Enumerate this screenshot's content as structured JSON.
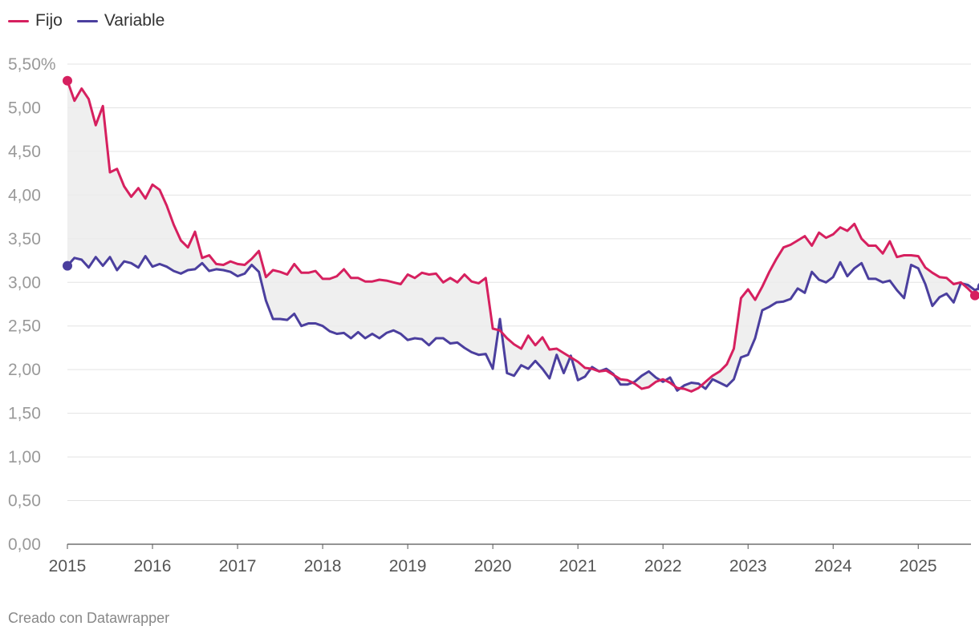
{
  "chart_data": {
    "type": "line",
    "title": "",
    "xlabel": "",
    "ylabel": "",
    "ylim": [
      0,
      5.5
    ],
    "yticks": [
      0,
      0.5,
      1.0,
      1.5,
      2.0,
      2.5,
      3.0,
      3.5,
      4.0,
      4.5,
      5.0,
      5.5
    ],
    "ytick_labels": [
      "0,00",
      "0,50",
      "1,00",
      "1,50",
      "2,00",
      "2,50",
      "3,00",
      "3,50",
      "4,00",
      "4,50",
      "5,00",
      "5,50%"
    ],
    "xlim": [
      2015.0,
      2025.62
    ],
    "xtick_labels": [
      "2015",
      "2016",
      "2017",
      "2018",
      "2019",
      "2020",
      "2021",
      "2022",
      "2023",
      "2024",
      "2025"
    ],
    "grid": true,
    "fill_between": true,
    "legend_position": "top-left",
    "series": [
      {
        "name": "Fijo",
        "color": "#d6205f",
        "start": 2015.0,
        "step_months": 1,
        "values": [
          5.31,
          5.08,
          5.22,
          5.1,
          4.8,
          5.02,
          4.26,
          4.3,
          4.1,
          3.98,
          4.08,
          3.96,
          4.12,
          4.06,
          3.88,
          3.66,
          3.48,
          3.4,
          3.58,
          3.28,
          3.31,
          3.21,
          3.2,
          3.24,
          3.21,
          3.2,
          3.27,
          3.36,
          3.06,
          3.14,
          3.12,
          3.09,
          3.21,
          3.11,
          3.11,
          3.13,
          3.04,
          3.04,
          3.07,
          3.15,
          3.05,
          3.05,
          3.01,
          3.01,
          3.03,
          3.02,
          3.0,
          2.98,
          3.09,
          3.05,
          3.11,
          3.09,
          3.1,
          3.0,
          3.05,
          3.0,
          3.09,
          3.01,
          2.99,
          3.05,
          2.47,
          2.45,
          2.36,
          2.29,
          2.24,
          2.39,
          2.28,
          2.37,
          2.23,
          2.24,
          2.19,
          2.14,
          2.09,
          2.02,
          2.01,
          1.98,
          1.99,
          1.94,
          1.89,
          1.88,
          1.84,
          1.78,
          1.8,
          1.86,
          1.89,
          1.85,
          1.79,
          1.78,
          1.75,
          1.79,
          1.86,
          1.93,
          1.98,
          2.06,
          2.24,
          2.82,
          2.92,
          2.8,
          2.95,
          3.12,
          3.27,
          3.4,
          3.43,
          3.48,
          3.53,
          3.42,
          3.57,
          3.51,
          3.55,
          3.63,
          3.59,
          3.67,
          3.5,
          3.42,
          3.42,
          3.33,
          3.47,
          3.29,
          3.31,
          3.31,
          3.3,
          3.17,
          3.11,
          3.06,
          3.05,
          2.98,
          3.0,
          2.93,
          2.85
        ]
      },
      {
        "name": "Variable",
        "color": "#4b3f9e",
        "start": 2015.0,
        "step_months": 1,
        "values": [
          3.19,
          3.28,
          3.26,
          3.17,
          3.29,
          3.19,
          3.29,
          3.14,
          3.24,
          3.22,
          3.17,
          3.3,
          3.18,
          3.21,
          3.18,
          3.13,
          3.1,
          3.14,
          3.15,
          3.22,
          3.13,
          3.15,
          3.14,
          3.12,
          3.07,
          3.1,
          3.2,
          3.12,
          2.79,
          2.58,
          2.58,
          2.57,
          2.64,
          2.5,
          2.53,
          2.53,
          2.5,
          2.44,
          2.41,
          2.42,
          2.36,
          2.43,
          2.36,
          2.41,
          2.36,
          2.42,
          2.45,
          2.41,
          2.34,
          2.36,
          2.35,
          2.28,
          2.36,
          2.36,
          2.3,
          2.31,
          2.25,
          2.2,
          2.17,
          2.18,
          2.01,
          2.58,
          1.96,
          1.93,
          2.05,
          2.01,
          2.1,
          2.01,
          1.9,
          2.17,
          1.96,
          2.16,
          1.88,
          1.92,
          2.03,
          1.98,
          2.01,
          1.95,
          1.83,
          1.83,
          1.86,
          1.93,
          1.98,
          1.91,
          1.86,
          1.91,
          1.76,
          1.82,
          1.85,
          1.84,
          1.78,
          1.89,
          1.85,
          1.81,
          1.89,
          2.14,
          2.17,
          2.36,
          2.68,
          2.72,
          2.77,
          2.78,
          2.81,
          2.93,
          2.88,
          3.12,
          3.03,
          3.0,
          3.06,
          3.23,
          3.07,
          3.16,
          3.22,
          3.04,
          3.04,
          3.0,
          3.02,
          2.91,
          2.82,
          3.2,
          3.16,
          2.98,
          2.73,
          2.83,
          2.87,
          2.77,
          2.99,
          2.97,
          2.91,
          2.95
        ]
      }
    ]
  },
  "credit": "Creado con Datawrapper"
}
